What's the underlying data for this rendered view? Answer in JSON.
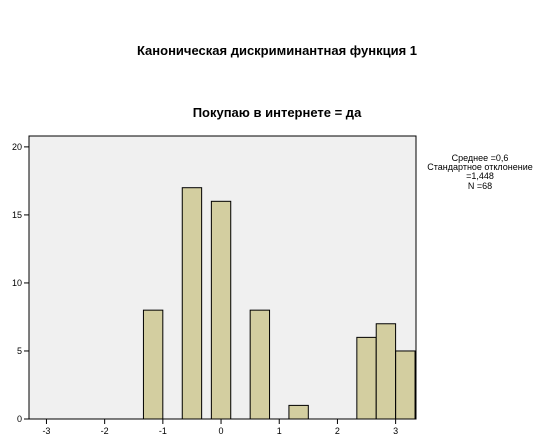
{
  "figure": {
    "title": "Каноническая дискриминантная функция 1",
    "subtitle": "Покупаю в интернете = да"
  },
  "stats": {
    "mean": "Среднее =0,6",
    "sd_label": "Стандартное отклонение",
    "sd_value": "=1,448",
    "n": "N =68"
  },
  "chart_data": {
    "type": "bar",
    "title": "Каноническая дискриминантная функция 1",
    "subtitle": "Покупаю в интернете = да",
    "xlabel": "",
    "ylabel": "",
    "bin_width": 0.333,
    "x_bins": [
      -1.167,
      -0.5,
      0.0,
      0.667,
      1.333,
      2.5,
      2.833,
      3.167
    ],
    "values": [
      8,
      17,
      16,
      8,
      1,
      6,
      7,
      5
    ],
    "xlim": [
      -3.3,
      3.35
    ],
    "ylim": [
      0,
      20.8
    ],
    "xticks": [
      -3,
      -2,
      -1,
      0,
      1,
      2,
      3
    ],
    "yticks": [
      0,
      5,
      10,
      15,
      20
    ],
    "grid": false,
    "colors": {
      "plot_bg": "#f0f0f0",
      "bar_fill": "#d3cea0",
      "bar_stroke": "#000000"
    }
  }
}
